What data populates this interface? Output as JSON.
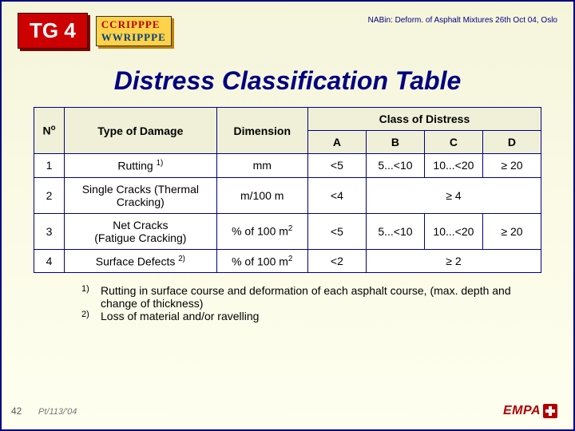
{
  "header": {
    "badge": "TG 4",
    "logo_line1": "CCRIPPPE",
    "logo_line2": "WWRIPPPE",
    "note": "NABin: Deform. of Asphalt Mixtures 26th Oct 04, Oslo"
  },
  "title": "Distress Classification Table",
  "table": {
    "col_headers": {
      "no": "N",
      "no_sup": "o",
      "type": "Type of Damage",
      "dimension": "Dimension",
      "class_span": "Class of Distress",
      "A": "A",
      "B": "B",
      "C": "C",
      "D": "D"
    },
    "rows": [
      {
        "no": "1",
        "type": "Rutting ",
        "type_sup": "1)",
        "dimension": "mm",
        "A": "<5",
        "B": "5...<10",
        "C": "10...<20",
        "D": "≥ 20",
        "merge_bcd": false
      },
      {
        "no": "2",
        "type": "Single Cracks (Thermal Cracking)",
        "type_sup": "",
        "dimension": "m/100 m",
        "A": "<4",
        "BCD": "≥ 4",
        "merge_bcd": true
      },
      {
        "no": "3",
        "type": "Net Cracks\n(Fatigue Cracking)",
        "type_sup": "",
        "dimension": "% of 100 m",
        "dimension_sup": "2",
        "A": "<5",
        "B": "5...<10",
        "C": "10...<20",
        "D": "≥ 20",
        "merge_bcd": false
      },
      {
        "no": "4",
        "type": "Surface Defects ",
        "type_sup": "2)",
        "dimension": "% of 100 m",
        "dimension_sup": "2",
        "A": "<2",
        "BCD": "≥ 2",
        "merge_bcd": true
      }
    ]
  },
  "footnotes": [
    {
      "mark": "1)",
      "text": "Rutting in surface course and deformation of each asphalt course, (max. depth and change of thickness)"
    },
    {
      "mark": "2)",
      "text": "Loss of material and/or ravelling"
    }
  ],
  "page": {
    "number": "42",
    "ref": "Pt/113/'04"
  },
  "brand": {
    "name": "EMPA"
  },
  "colors": {
    "page_border": "#000080",
    "title_color": "#000080",
    "badge_bg": "#cc0000",
    "badge_text": "#ffffff",
    "logo_bg": "#ffd24a",
    "logo_red": "#b00000",
    "logo_blue": "#004080",
    "table_border": "#000080",
    "background_top": "#f5f5dc",
    "background_bottom": "#fffff0",
    "empa_color": "#b00000"
  }
}
